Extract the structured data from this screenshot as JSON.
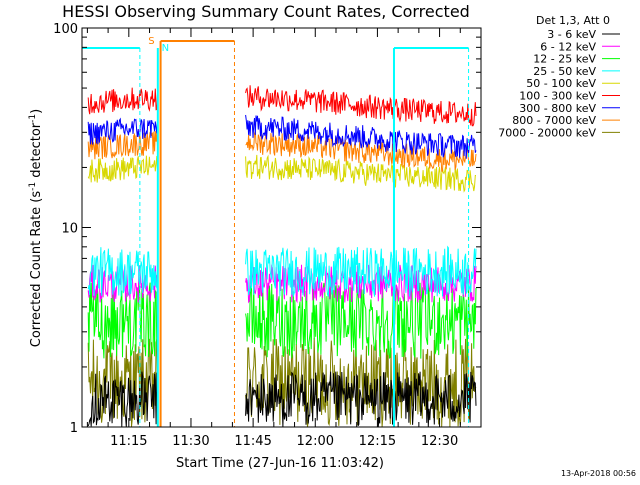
{
  "chart_data": {
    "type": "line",
    "title": "HESSI Observing Summary Count Rates, Corrected",
    "xlabel": "Start Time (27-Jun-16 11:03:42)",
    "ylabel_main": "Corrected Count Rate (s",
    "ylabel_sup1": "-1",
    "ylabel_mid": " detector",
    "ylabel_sup2": "-1",
    "ylabel_end": ")",
    "y_scale": "log",
    "ylim": [
      1,
      100
    ],
    "y_ticks": [
      "1",
      "10",
      "100"
    ],
    "x_range_minutes": [
      "11:03:42",
      "12:40:00"
    ],
    "x_ticks": [
      "11:15",
      "11:30",
      "11:45",
      "12:00",
      "12:15",
      "12:30"
    ],
    "legend_header": "Det 1,3, Att 0",
    "legend_placement": "right",
    "timestamp": "13-Apr-2018 00:56",
    "flag_labels": {
      "saa": "S",
      "night": "N"
    },
    "data_gap": [
      "11:22",
      "11:43"
    ],
    "series": [
      {
        "name": "3 - 6 keV",
        "color": "#000000",
        "level": [
          1.0,
          1.9
        ]
      },
      {
        "name": "6 - 12 keV",
        "color": "#ff00ff",
        "level": [
          4.2,
          6.5
        ]
      },
      {
        "name": "12 - 25 keV",
        "color": "#00ff00",
        "level": [
          2.2,
          5.3
        ]
      },
      {
        "name": "25 - 50 keV",
        "color": "#00ffff",
        "level": [
          4.5,
          8.0
        ]
      },
      {
        "name": "50 - 100 keV",
        "color": "#d8d800",
        "level": [
          16,
          22
        ]
      },
      {
        "name": "100 - 300 keV",
        "color": "#ff0000",
        "level": [
          33,
          50
        ]
      },
      {
        "name": "300 - 800 keV",
        "color": "#0000ff",
        "level": [
          22,
          36
        ]
      },
      {
        "name": "800 - 7000 keV",
        "color": "#ff8000",
        "level": [
          19,
          30
        ]
      },
      {
        "name": "7000 - 20000 keV",
        "color": "#808000",
        "level": [
          1.0,
          2.8
        ]
      }
    ]
  }
}
